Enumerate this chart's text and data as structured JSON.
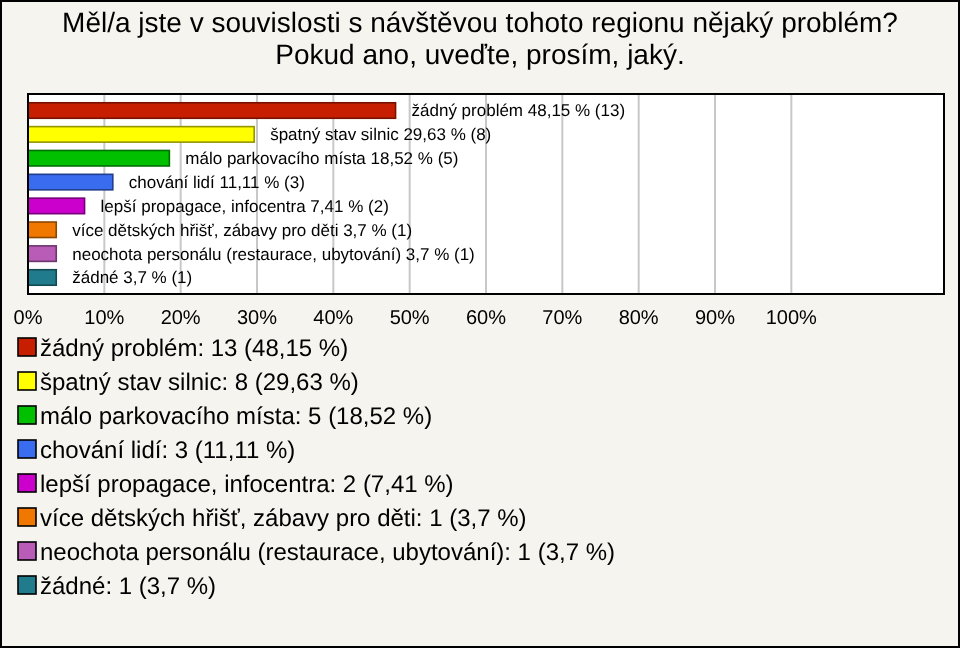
{
  "chart_data": {
    "type": "bar",
    "orientation": "horizontal",
    "title": "Měl/a jste v souvislosti s návštěvou tohoto regionu nějaký problém? Pokud ano, uveďte, prosím, jaký.",
    "categories": [
      "žádný problém",
      "špatný stav silnic",
      "málo parkovacího místa",
      "chování lidí",
      "lepší propagace, infocentra",
      "více dětských hřišť, zábavy pro děti",
      "neochota personálu (restaurace, ubytování)",
      "žádné"
    ],
    "values": [
      48.15,
      29.63,
      18.52,
      11.11,
      7.41,
      3.7,
      3.7,
      3.7
    ],
    "value_labels": [
      "48,15 % (13)",
      "29,63 % (8)",
      "18,52 % (5)",
      "11,11 % (3)",
      "7,41 % (2)",
      "3,7 % (1)",
      "3,7 % (1)",
      "3,7 % (1)"
    ],
    "colors": [
      "#c81e00",
      "#ffff00",
      "#00c000",
      "#3a6cf0",
      "#cc00cc",
      "#f07800",
      "#b85cb8",
      "#207c8c"
    ],
    "xlim": [
      0,
      120
    ],
    "xticks": [
      {
        "value": 0,
        "label": "0%"
      },
      {
        "value": 10,
        "label": "10%"
      },
      {
        "value": 20,
        "label": "20%"
      },
      {
        "value": 30,
        "label": "30%"
      },
      {
        "value": 40,
        "label": "40%"
      },
      {
        "value": 50,
        "label": "50%"
      },
      {
        "value": 60,
        "label": "60%"
      },
      {
        "value": 70,
        "label": "70%"
      },
      {
        "value": 80,
        "label": "80%"
      },
      {
        "value": 90,
        "label": "90%"
      },
      {
        "value": 100,
        "label": "100%"
      }
    ],
    "grid": "x",
    "annotations": [
      "žádný problém: 13 (48,15 %)",
      "špatný stav silnic: 8 (29,63 %)",
      "málo parkovacího místa: 5 (18,52 %)",
      "chování lidí: 3 (11,11 %)",
      "lepší propagace, infocentra: 2 (7,41 %)",
      "více dětských hřišť, zábavy pro děti: 1 (3,7 %)",
      "neochota personálu (restaurace, ubytování): 1 (3,7 %)",
      "žádné: 1 (3,7 %)"
    ]
  }
}
